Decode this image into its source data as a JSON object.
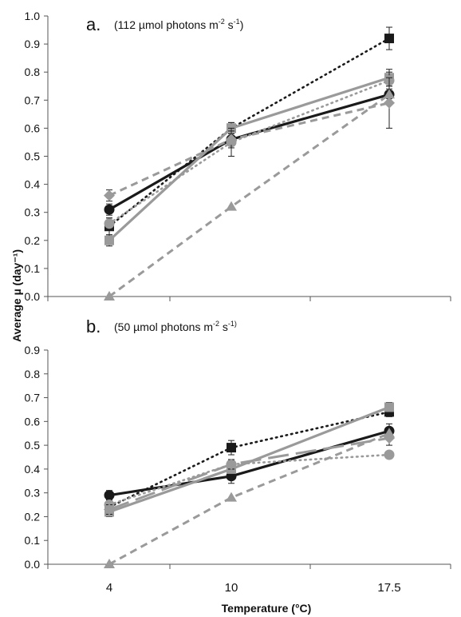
{
  "chart_data": [
    {
      "type": "line",
      "panel_label": "a.",
      "annotation": "(112 µmol photons m⁻² s⁻¹)",
      "annotation_parts": [
        "(112 µmol photons m",
        "-2",
        " s",
        "-1",
        ")"
      ],
      "xlabel": "Temperature (°C)",
      "ylabel": "Average µ (day⁻¹)",
      "x_categories": [
        "4",
        "10",
        "17.5"
      ],
      "ylim": [
        0,
        1.0
      ],
      "y_ticks": [
        "0.0",
        "0.1",
        "0.2",
        "0.3",
        "0.4",
        "0.5",
        "0.6",
        "0.7",
        "0.8",
        "0.9",
        "1.0"
      ],
      "grid": false,
      "series": [
        {
          "values": [
            0.25,
            0.6,
            0.92
          ],
          "style": "dotted",
          "color": "#1a1a1a",
          "marker": "square",
          "errors": [
            0.03,
            0.02,
            0.04
          ]
        },
        {
          "values": [
            0.31,
            0.56,
            0.72
          ],
          "style": "solid",
          "color": "#1a1a1a",
          "marker": "circle",
          "errors": [
            0.02,
            0.02,
            0.03
          ]
        },
        {
          "values": [
            0.2,
            0.6,
            0.78
          ],
          "style": "solid",
          "color": "#9a9a9a",
          "marker": "square",
          "errors": [
            0.02,
            0.02,
            0.03
          ]
        },
        {
          "values": [
            0.26,
            0.55,
            0.77
          ],
          "style": "dotted",
          "color": "#9a9a9a",
          "marker": "circle",
          "errors": [
            0.02,
            0.05,
            0.03
          ]
        },
        {
          "values": [
            0.36,
            0.56,
            0.69
          ],
          "style": "dashed",
          "color": "#9a9a9a",
          "marker": "diamond",
          "errors": [
            0.02,
            0.03,
            0.09
          ]
        },
        {
          "values": [
            0.0,
            0.32,
            0.72
          ],
          "style": "dashed",
          "color": "#9a9a9a",
          "marker": "triangle",
          "errors": [
            0,
            0,
            0
          ]
        }
      ]
    },
    {
      "type": "line",
      "panel_label": "b.",
      "annotation": "(50 µmol photons m⁻² s⁻¹)",
      "annotation_parts": [
        "(50 µmol photons m",
        "-2",
        " s",
        "-1)",
        ""
      ],
      "x_categories": [
        "4",
        "10",
        "17.5"
      ],
      "ylim": [
        0,
        0.9
      ],
      "y_ticks": [
        "0.0",
        "0.1",
        "0.2",
        "0.3",
        "0.4",
        "0.5",
        "0.6",
        "0.7",
        "0.8",
        "0.9"
      ],
      "grid": false,
      "series": [
        {
          "values": [
            0.24,
            0.49,
            0.64
          ],
          "style": "dotted",
          "color": "#1a1a1a",
          "marker": "square",
          "errors": [
            0.02,
            0.03,
            0.02
          ]
        },
        {
          "values": [
            0.29,
            0.37,
            0.56
          ],
          "style": "solid",
          "color": "#1a1a1a",
          "marker": "circle",
          "errors": [
            0.02,
            0.03,
            0.03
          ]
        },
        {
          "values": [
            0.22,
            0.4,
            0.66
          ],
          "style": "solid",
          "color": "#9a9a9a",
          "marker": "square",
          "errors": [
            0.02,
            0.02,
            0.02
          ]
        },
        {
          "values": [
            0.25,
            0.42,
            0.46
          ],
          "style": "dotted",
          "color": "#9a9a9a",
          "marker": "circle",
          "errors": [
            0.02,
            0.02,
            0.01
          ]
        },
        {
          "values": [
            0.23,
            0.42,
            0.53
          ],
          "style": "longdash",
          "color": "#9a9a9a",
          "marker": "diamond",
          "errors": [
            0.02,
            0.02,
            0.03
          ]
        },
        {
          "values": [
            0.0,
            0.28,
            0.55
          ],
          "style": "dashed",
          "color": "#9a9a9a",
          "marker": "triangle",
          "errors": [
            0,
            0,
            0
          ]
        }
      ]
    }
  ]
}
